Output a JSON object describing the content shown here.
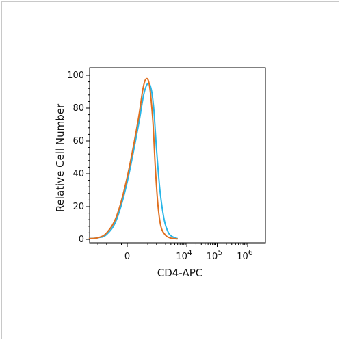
{
  "chart_data": {
    "type": "line",
    "title": "",
    "xlabel": "CD4-APC",
    "ylabel": "Relative Cell Number",
    "x_scale": "biexponential",
    "y_ticks": [
      0,
      20,
      40,
      60,
      80,
      100
    ],
    "y_tick_labels": [
      "0",
      "20",
      "40",
      "60",
      "80",
      "100"
    ],
    "ylim": [
      0,
      100
    ],
    "x_ticks": [
      {
        "value": 0,
        "label": "0",
        "exp": ""
      },
      {
        "value": 10000,
        "label": "10",
        "exp": "4"
      },
      {
        "value": 100000,
        "label": "10",
        "exp": "5"
      },
      {
        "value": 1000000,
        "label": "10",
        "exp": "6"
      }
    ],
    "series": [
      {
        "color": "#29b6e8",
        "points": [
          [
            -2000,
            0.5
          ],
          [
            -1000,
            1
          ],
          [
            -500,
            3
          ],
          [
            -200,
            12
          ],
          [
            0,
            35
          ],
          [
            200,
            68
          ],
          [
            350,
            88
          ],
          [
            500,
            95
          ],
          [
            650,
            92
          ],
          [
            800,
            80
          ],
          [
            1000,
            55
          ],
          [
            1300,
            30
          ],
          [
            1800,
            12
          ],
          [
            2500,
            4
          ],
          [
            3500,
            1.5
          ],
          [
            5000,
            0.5
          ]
        ]
      },
      {
        "color": "#e07020",
        "points": [
          [
            -2000,
            0.5
          ],
          [
            -1000,
            1
          ],
          [
            -500,
            4
          ],
          [
            -200,
            14
          ],
          [
            0,
            38
          ],
          [
            200,
            72
          ],
          [
            330,
            92
          ],
          [
            450,
            98
          ],
          [
            580,
            93
          ],
          [
            750,
            72
          ],
          [
            900,
            45
          ],
          [
            1100,
            22
          ],
          [
            1400,
            8
          ],
          [
            2000,
            2.5
          ],
          [
            3000,
            0.8
          ],
          [
            5000,
            0.3
          ]
        ]
      }
    ]
  }
}
